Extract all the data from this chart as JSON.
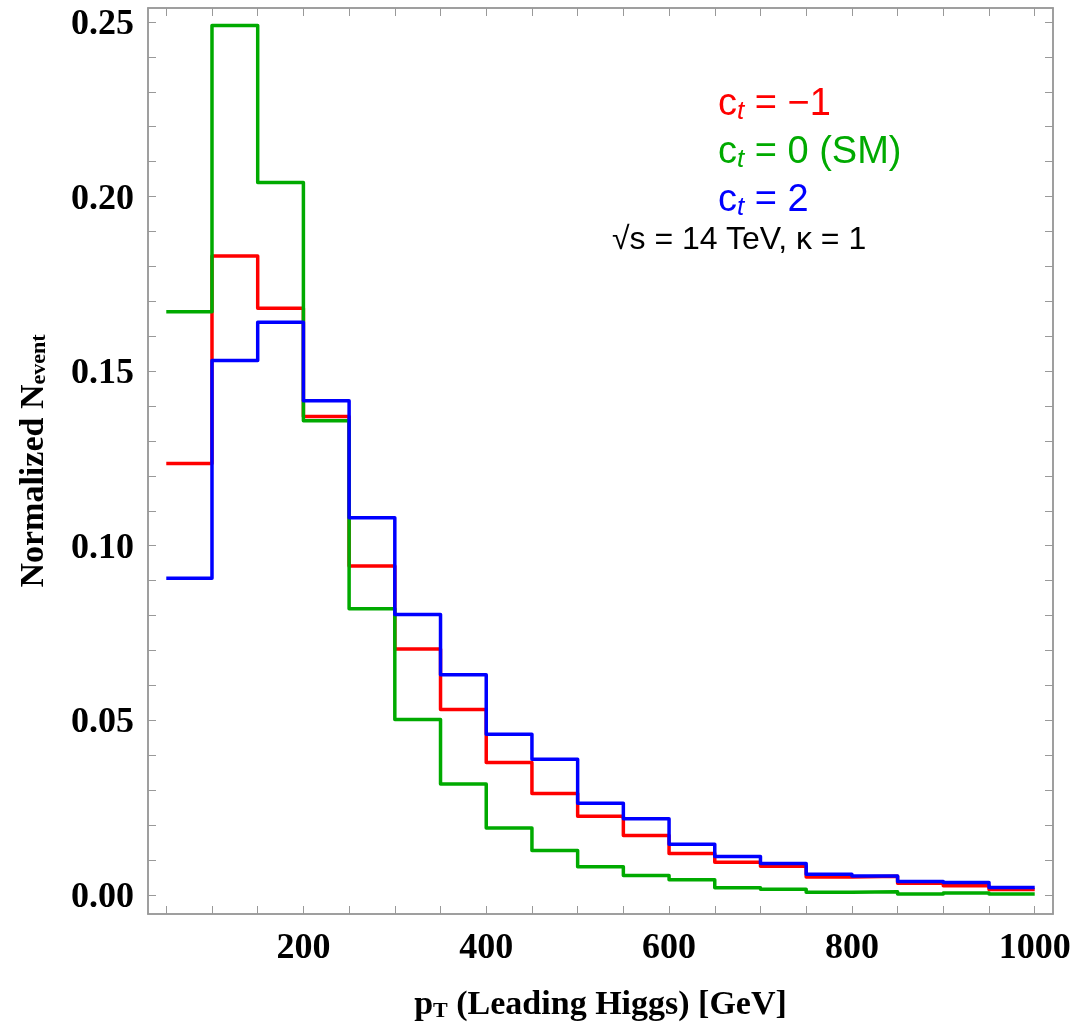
{
  "chart_data": {
    "type": "histogram",
    "xlabel": "p$_{T}$ (Leading Higgs) [GeV]",
    "ylabel": "Normalized N$_{event}$",
    "bins": [
      50,
      100,
      150,
      200,
      250,
      300,
      350,
      400,
      450,
      500,
      550,
      600,
      650,
      700,
      750,
      800,
      850,
      900,
      950,
      1000
    ],
    "series": [
      {
        "name": "c$_{t}$ = −1",
        "color": "#ff0000",
        "values": [
          0.1235,
          0.183,
          0.168,
          0.137,
          0.0942,
          0.0704,
          0.0531,
          0.0379,
          0.029,
          0.0225,
          0.017,
          0.0118,
          0.0093,
          0.0082,
          0.0051,
          0.0053,
          0.0033,
          0.0026,
          0.0015
        ]
      },
      {
        "name": "c$_{t}$ = 0 (SM)",
        "color": "#00aa00",
        "values": [
          0.167,
          0.249,
          0.204,
          0.1358,
          0.0819,
          0.0502,
          0.0317,
          0.0191,
          0.0127,
          0.008,
          0.0055,
          0.0043,
          0.002,
          0.0016,
          0.0007,
          0.0009,
          0.0002,
          0.0005,
          0.0002
        ]
      },
      {
        "name": "c$_{t}$ = 2",
        "color": "#0000ff",
        "values": [
          0.0907,
          0.153,
          0.164,
          0.1415,
          0.108,
          0.0803,
          0.063,
          0.046,
          0.0388,
          0.0262,
          0.0218,
          0.0145,
          0.011,
          0.009,
          0.0059,
          0.0054,
          0.0038,
          0.0035,
          0.0021
        ]
      }
    ],
    "xlim": [
      30,
      1020
    ],
    "ylim": [
      -0.0055,
      0.254
    ],
    "xticks": [
      {
        "value": 50,
        "label": null
      },
      {
        "value": 100,
        "label": null
      },
      {
        "value": 150,
        "label": null
      },
      200,
      {
        "value": 250,
        "label": null
      },
      {
        "value": 300,
        "label": null
      },
      {
        "value": 350,
        "label": null
      },
      400,
      {
        "value": 450,
        "label": null
      },
      {
        "value": 500,
        "label": null
      },
      {
        "value": 550,
        "label": null
      },
      600,
      {
        "value": 650,
        "label": null
      },
      {
        "value": 700,
        "label": null
      },
      {
        "value": 750,
        "label": null
      },
      800,
      {
        "value": 850,
        "label": null
      },
      {
        "value": 900,
        "label": null
      },
      {
        "value": 950,
        "label": null
      },
      1000
    ],
    "yticks": [
      {
        "value": 0,
        "label": "0.00"
      },
      {
        "value": 0.01,
        "label": null
      },
      {
        "value": 0.02,
        "label": null
      },
      {
        "value": 0.03,
        "label": null
      },
      {
        "value": 0.04,
        "label": null
      },
      {
        "value": 0.05,
        "label": "0.05"
      },
      {
        "value": 0.06,
        "label": null
      },
      {
        "value": 0.07,
        "label": null
      },
      {
        "value": 0.08,
        "label": null
      },
      {
        "value": 0.09,
        "label": null
      },
      {
        "value": 0.1,
        "label": "0.10"
      },
      {
        "value": 0.11,
        "label": null
      },
      {
        "value": 0.12,
        "label": null
      },
      {
        "value": 0.13,
        "label": null
      },
      {
        "value": 0.14,
        "label": null
      },
      {
        "value": 0.15,
        "label": "0.15"
      },
      {
        "value": 0.16,
        "label": null
      },
      {
        "value": 0.17,
        "label": null
      },
      {
        "value": 0.18,
        "label": null
      },
      {
        "value": 0.19,
        "label": null
      },
      {
        "value": 0.2,
        "label": "0.20"
      },
      {
        "value": 0.21,
        "label": null
      },
      {
        "value": 0.22,
        "label": null
      },
      {
        "value": 0.23,
        "label": null
      },
      {
        "value": 0.24,
        "label": null
      },
      {
        "value": 0.25,
        "label": "0.25"
      }
    ],
    "annotations": [
      "√s = 14 TeV, κ = 1"
    ],
    "legend": "top right",
    "grid": false
  }
}
